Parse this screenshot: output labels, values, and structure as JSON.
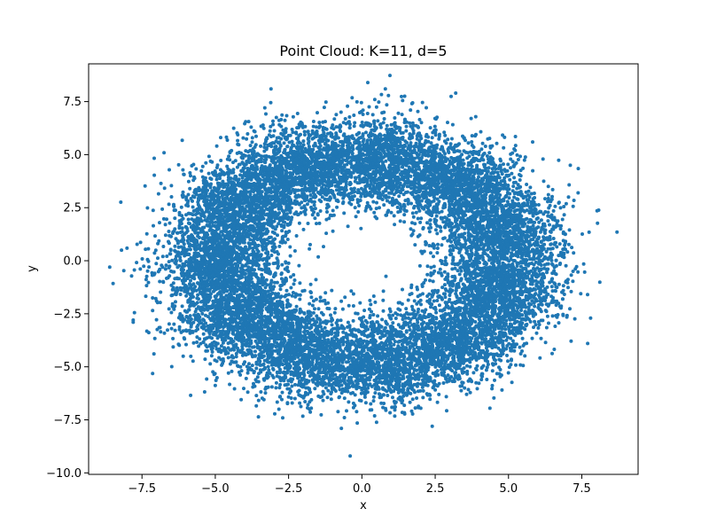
{
  "chart_data": {
    "type": "scatter",
    "title": "Point Cloud: K=11, d=5",
    "xlabel": "x",
    "ylabel": "y",
    "xlim": [
      -9.32,
      9.42
    ],
    "ylim": [
      -10.07,
      9.28
    ],
    "xticks": [
      -7.5,
      -5.0,
      -2.5,
      0.0,
      2.5,
      5.0,
      7.5
    ],
    "xtick_labels": [
      "−7.5",
      "−5.0",
      "−2.5",
      "0.0",
      "2.5",
      "5.0",
      "7.5"
    ],
    "yticks": [
      -10.0,
      -7.5,
      -5.0,
      -2.5,
      0.0,
      2.5,
      5.0,
      7.5
    ],
    "ytick_labels": [
      "−10.0",
      "−7.5",
      "−5.0",
      "−2.5",
      "0.0",
      "2.5",
      "5.0",
      "7.5"
    ],
    "grid": false,
    "legend": "none",
    "marker_color": "#1f77b4",
    "series": [
      {
        "description_note_free": true,
        "cluster_count": 11,
        "ring_center": [
          0.0,
          0.0
        ],
        "ring_radius_x": 5.0,
        "ring_radius_y": 4.8,
        "outliers": [
          {
            "x": 8.7,
            "y": 1.35
          },
          {
            "x": -8.6,
            "y": -0.3
          },
          {
            "x": -8.2,
            "y": 0.5
          },
          {
            "x": -0.4,
            "y": -9.2
          },
          {
            "x": 0.2,
            "y": 8.4
          },
          {
            "x": -3.1,
            "y": 8.1
          },
          {
            "x": 3.2,
            "y": 7.9
          },
          {
            "x": 7.8,
            "y": -2.7
          },
          {
            "x": 7.7,
            "y": -3.9
          },
          {
            "x": -7.8,
            "y": -2.9
          },
          {
            "x": 2.4,
            "y": -7.8
          },
          {
            "x": -0.7,
            "y": -7.9
          }
        ]
      }
    ]
  }
}
